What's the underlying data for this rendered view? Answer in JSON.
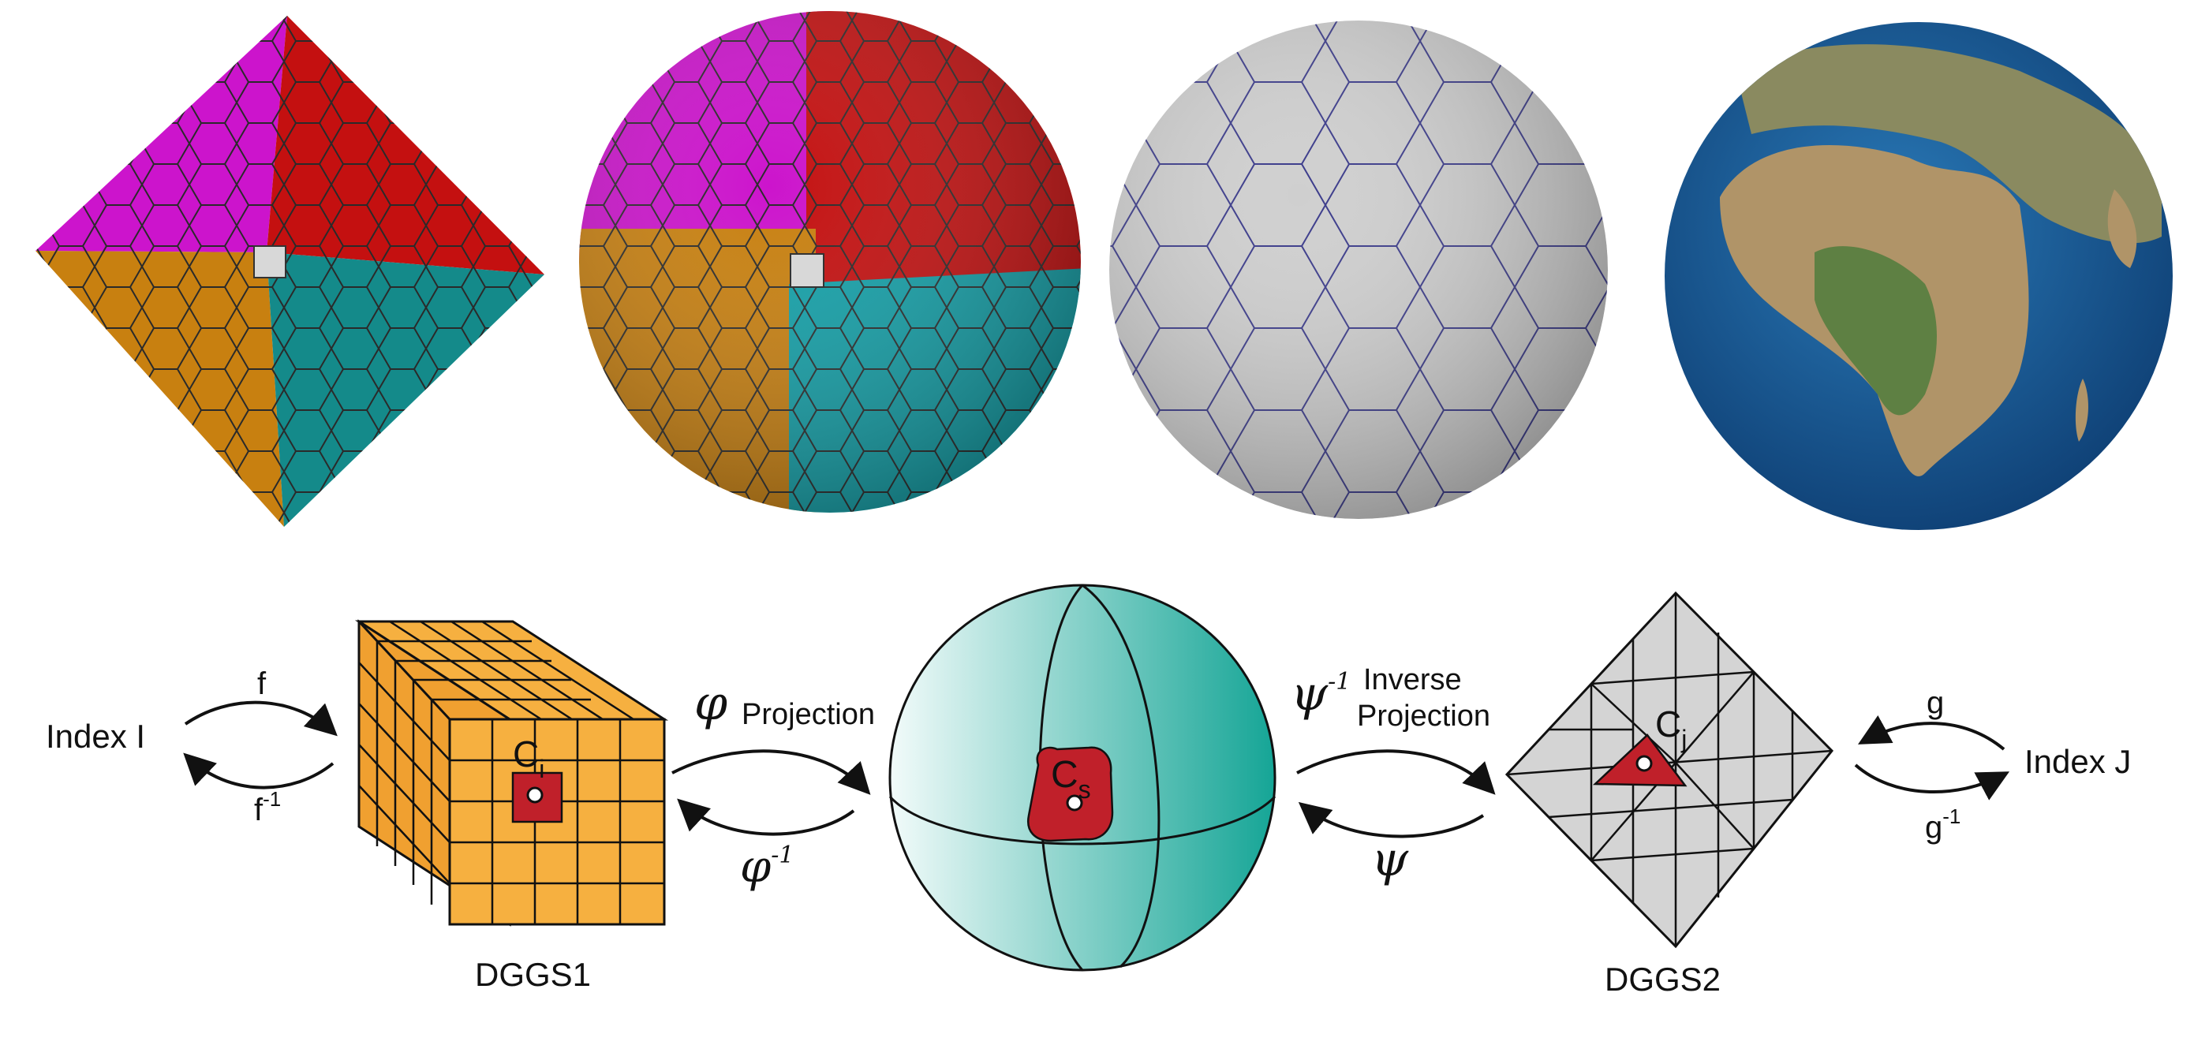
{
  "top_row": {
    "panels": [
      {
        "name": "octahedron-hex-grid",
        "colors": {
          "magenta": "#cc14cc",
          "red": "#c41010",
          "orange": "#c88010",
          "teal": "#148a8a",
          "pole": "#d8d8d8"
        }
      },
      {
        "name": "sphere-colored-hex-grid",
        "colors": {
          "magenta": "#cc14cc",
          "red": "#c41010",
          "orange": "#c88010",
          "teal": "#14a0a8",
          "pole": "#d8d8d8"
        }
      },
      {
        "name": "sphere-gray-hex-grid",
        "colors": {
          "fill": "#c8c8c8",
          "edge": "#3a3a8a"
        }
      },
      {
        "name": "earth-globe",
        "colors": {
          "ocean": "#1a5a9a",
          "land": "#b09468",
          "vegetation": "#4a7a3a"
        }
      }
    ]
  },
  "bottom_row": {
    "index_i": "Index I",
    "f": "f",
    "f_inv_base": "f",
    "f_inv_sup": "-1",
    "cell_ci_base": "C",
    "cell_ci_sub": "i",
    "dggs1": "DGGS1",
    "phi": "φ",
    "projection": "Projection",
    "phi_inv_base": "φ",
    "phi_inv_sup": "-1",
    "cell_cs_base": "C",
    "cell_cs_sub": "s",
    "psi_inv_base": "ψ",
    "psi_inv_sup": "-1",
    "inverse": "Inverse",
    "projection2": "Projection",
    "psi": "ψ",
    "cell_cj_base": "C",
    "cell_cj_sub": "j",
    "dggs2": "DGGS2",
    "g": "g",
    "g_inv_base": "g",
    "g_inv_sup": "-1",
    "index_j": "Index J",
    "colors": {
      "cube": "#f6b040",
      "cell": "#c0202a",
      "sphere_light": "#e8f6f4",
      "sphere_dark": "#1aa89a",
      "octa": "#d4d4d4"
    }
  }
}
